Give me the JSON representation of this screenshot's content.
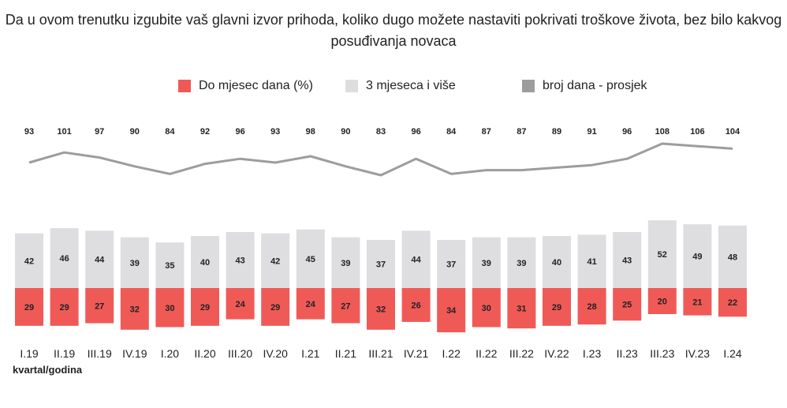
{
  "title": "Da u ovom trenutku izgubite vaš glavni izvor prihoda, koliko dugo možete nastaviti pokrivati troškove života, bez bilo kakvog posuđivanja novaca",
  "legend": [
    {
      "label": "Do mjesec dana (%)",
      "color": "#ef5a57"
    },
    {
      "label": "3 mjeseca i više",
      "color": "#dedde0"
    },
    {
      "label": "broj dana - prosjek",
      "color": "#9d9c9f"
    }
  ],
  "xlabel": "kvartal/godina",
  "chart_data": {
    "type": "bar",
    "categories": [
      "I.19",
      "II.19",
      "III.19",
      "IV.19",
      "I.20",
      "II.20",
      "III.20",
      "IV.20",
      "I.21",
      "II.21",
      "III.21",
      "IV.21",
      "I.22",
      "II.22",
      "III.22",
      "IV.22",
      "I.23",
      "II.23",
      "III.23",
      "IV.23",
      "I.24"
    ],
    "series": [
      {
        "name": "Do mjesec dana (%)",
        "type": "bar",
        "color": "#ef5a57",
        "values": [
          29,
          29,
          27,
          32,
          30,
          29,
          24,
          29,
          24,
          27,
          32,
          26,
          34,
          30,
          31,
          29,
          28,
          25,
          20,
          21,
          22
        ]
      },
      {
        "name": "3 mjeseca i više",
        "type": "bar",
        "color": "#dedde0",
        "values": [
          42,
          46,
          44,
          39,
          35,
          40,
          43,
          42,
          45,
          39,
          37,
          44,
          37,
          39,
          39,
          40,
          41,
          43,
          52,
          49,
          48
        ]
      },
      {
        "name": "broj dana - prosjek",
        "type": "line",
        "color": "#9d9c9f",
        "values": [
          93,
          101,
          97,
          90,
          84,
          92,
          96,
          93,
          98,
          90,
          83,
          96,
          84,
          87,
          87,
          89,
          91,
          96,
          108,
          106,
          104
        ]
      }
    ]
  }
}
